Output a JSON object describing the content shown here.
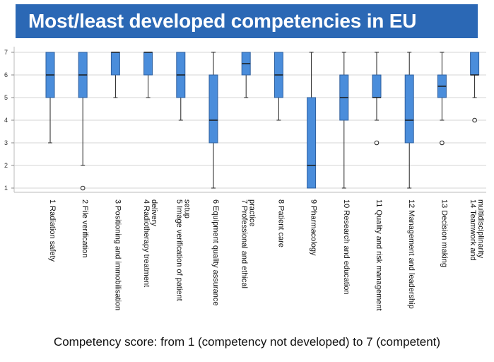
{
  "title": "Most/least developed competencies in EU",
  "caption": "Competency score: from 1 (competency not developed) to 7 (competent)",
  "colors": {
    "title_bg": "#2b68b5",
    "box_fill": "#4a8ddb",
    "box_stroke": "#2d5f9e",
    "whisker": "#222222"
  },
  "chart_data": {
    "type": "boxplot",
    "title": "Most/least developed competencies in EU",
    "xlabel": "",
    "ylabel": "",
    "ylim": [
      1,
      7
    ],
    "yticks": [
      1,
      2,
      3,
      4,
      5,
      6,
      7
    ],
    "grid": "horizontal",
    "categories": [
      {
        "label_lines": [
          "1 Radiation safety"
        ],
        "min": 3,
        "q1": 5,
        "median": 6,
        "q3": 7,
        "max": 7,
        "outliers": []
      },
      {
        "label_lines": [
          "2 File verification"
        ],
        "min": 2,
        "q1": 5,
        "median": 6,
        "q3": 7,
        "max": 7,
        "outliers": [
          1
        ]
      },
      {
        "label_lines": [
          "3 Positioning and immobilisation"
        ],
        "min": 5,
        "q1": 6,
        "median": 7,
        "q3": 7,
        "max": 7,
        "outliers": []
      },
      {
        "label_lines": [
          "4 Radiotherapy treatment",
          "delivery"
        ],
        "min": 5,
        "q1": 6,
        "median": 7,
        "q3": 7,
        "max": 7,
        "outliers": []
      },
      {
        "label_lines": [
          "5 Image verification of patient",
          "setup"
        ],
        "min": 4,
        "q1": 5,
        "median": 6,
        "q3": 7,
        "max": 7,
        "outliers": []
      },
      {
        "label_lines": [
          "6 Equipment quality assurance"
        ],
        "min": 1,
        "q1": 3,
        "median": 4,
        "q3": 6,
        "max": 7,
        "outliers": []
      },
      {
        "label_lines": [
          "7 Professional and ethical",
          "practice"
        ],
        "min": 5,
        "q1": 6,
        "median": 6.5,
        "q3": 7,
        "max": 7,
        "outliers": []
      },
      {
        "label_lines": [
          "8 Patient care"
        ],
        "min": 4,
        "q1": 5,
        "median": 6,
        "q3": 7,
        "max": 7,
        "outliers": []
      },
      {
        "label_lines": [
          "9 Pharmacology"
        ],
        "min": 1,
        "q1": 1,
        "median": 2,
        "q3": 5,
        "max": 7,
        "outliers": []
      },
      {
        "label_lines": [
          "10 Research and education"
        ],
        "min": 1,
        "q1": 4,
        "median": 5,
        "q3": 6,
        "max": 7,
        "outliers": []
      },
      {
        "label_lines": [
          "11 Quality and risk management"
        ],
        "min": 4,
        "q1": 5,
        "median": 5,
        "q3": 6,
        "max": 7,
        "outliers": [
          3
        ]
      },
      {
        "label_lines": [
          "12 Management and leadership"
        ],
        "min": 1,
        "q1": 3,
        "median": 4,
        "q3": 6,
        "max": 7,
        "outliers": []
      },
      {
        "label_lines": [
          "13 Decision making"
        ],
        "min": 4,
        "q1": 5,
        "median": 5.5,
        "q3": 6,
        "max": 7,
        "outliers": [
          3
        ]
      },
      {
        "label_lines": [
          "14 Teamwork and",
          "multidisciplinarity"
        ],
        "min": 5,
        "q1": 6,
        "median": 6,
        "q3": 7,
        "max": 7,
        "outliers": [
          4
        ]
      }
    ]
  }
}
